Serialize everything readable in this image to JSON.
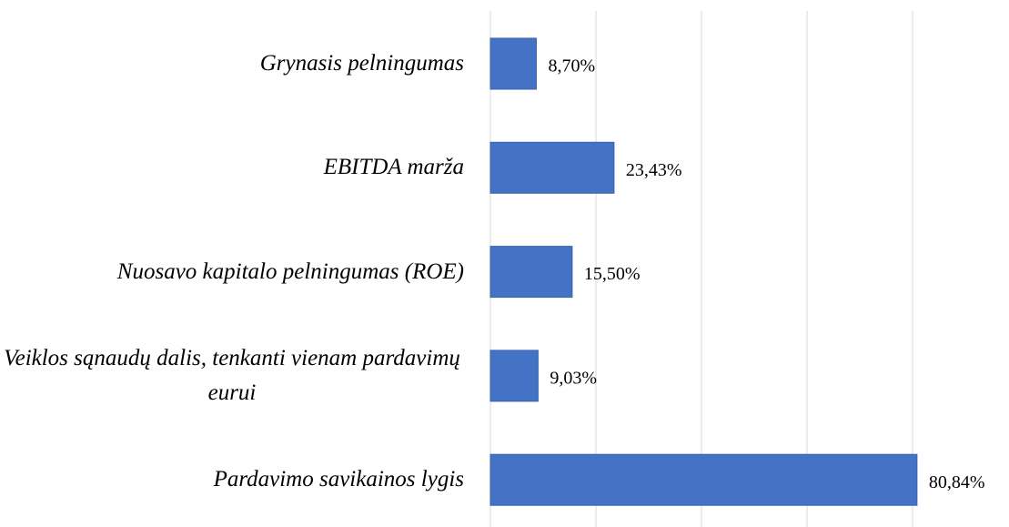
{
  "chart_data": {
    "type": "bar",
    "orientation": "horizontal",
    "categories": [
      "Grynasis pelningumas",
      "EBITDA marža",
      "Nuosavo kapitalo pelningumas (ROE)",
      "Veiklos sąnaudų dalis, tenkanti vienam pardavimų eurui",
      "Pardavimo savikainos lygis"
    ],
    "values": [
      8.7,
      23.43,
      15.5,
      9.03,
      80.84
    ],
    "value_labels": [
      "8,70%",
      "23,43%",
      "15,50%",
      "9,03%",
      "80,84%"
    ],
    "color": "#4472c4",
    "xlim": [
      0,
      90
    ],
    "xticks": [
      0,
      20,
      40,
      60,
      80
    ],
    "grid": true
  }
}
